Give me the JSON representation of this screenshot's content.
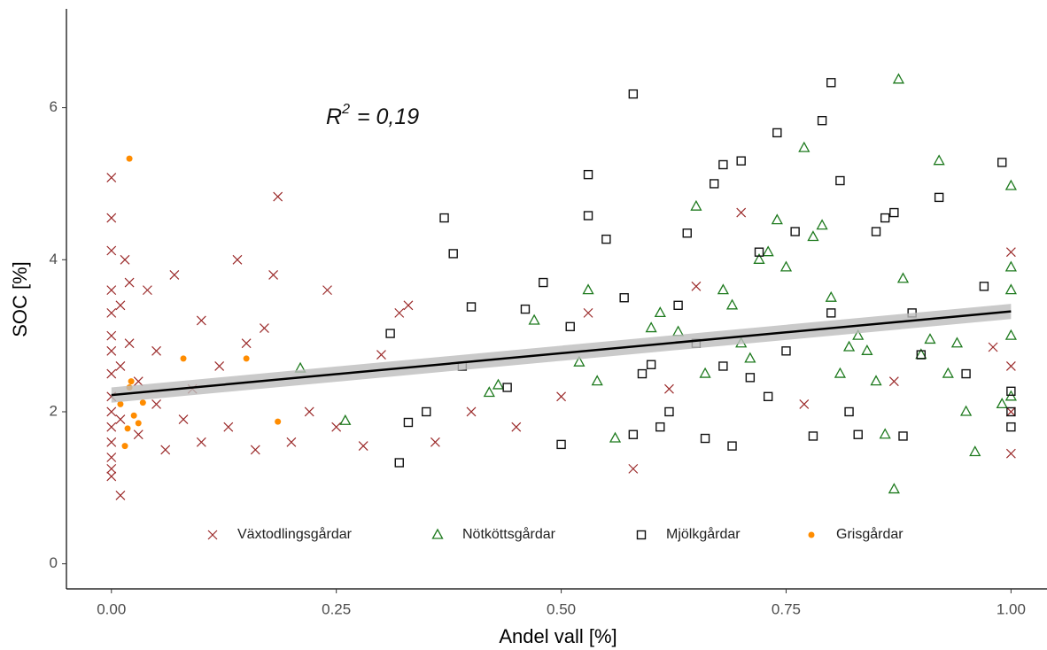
{
  "chart_data": {
    "type": "scatter",
    "xlabel": "Andel vall [%]",
    "ylabel": "SOC [%]",
    "annotation": {
      "text": "R",
      "superscript": "2",
      "rest": "= 0,19"
    },
    "xlim": [
      -0.05,
      1.04
    ],
    "ylim": [
      -0.33,
      7.3
    ],
    "xticks": [
      {
        "value": 0,
        "label": "0.00"
      },
      {
        "value": 0.25,
        "label": "0.25"
      },
      {
        "value": 0.5,
        "label": "0.50"
      },
      {
        "value": 0.75,
        "label": "0.75"
      },
      {
        "value": 1,
        "label": "1.00"
      }
    ],
    "yticks": [
      0,
      2,
      4,
      6
    ],
    "grid": false,
    "legend": "bottom",
    "series": [
      {
        "name": "Växtodlingsgårdar",
        "color": "#9b2a2a",
        "shape": "cross",
        "x": [
          0,
          0,
          0,
          0,
          0,
          0,
          0,
          0,
          0,
          0,
          0,
          0,
          0,
          0,
          0,
          0.01,
          0.01,
          0.01,
          0.01,
          0.015,
          0.02,
          0.02,
          0.03,
          0.03,
          0.04,
          0.05,
          0.05,
          0.06,
          0.07,
          0.08,
          0.09,
          0.1,
          0.1,
          0.12,
          0.13,
          0.14,
          0.15,
          0.16,
          0.17,
          0.185,
          0.18,
          0.2,
          0.22,
          0.24,
          0.25,
          0.28,
          0.3,
          0.32,
          0.33,
          0.36,
          0.4,
          0.45,
          0.5,
          0.53,
          0.58,
          0.62,
          0.65,
          0.7,
          0.77,
          0.87,
          0.98,
          1,
          1,
          1,
          1
        ],
        "values": [
          5.08,
          4.55,
          4.12,
          3.6,
          3.3,
          3.0,
          2.8,
          2.5,
          2.2,
          2.0,
          1.8,
          1.6,
          1.4,
          1.25,
          1.15,
          0.9,
          3.4,
          2.6,
          1.9,
          4.0,
          3.7,
          2.9,
          1.7,
          2.4,
          3.6,
          2.1,
          2.8,
          1.5,
          3.8,
          1.9,
          2.3,
          3.2,
          1.6,
          2.6,
          1.8,
          4.0,
          2.9,
          1.5,
          3.1,
          4.83,
          3.8,
          1.6,
          2.0,
          3.6,
          1.8,
          1.55,
          2.75,
          3.3,
          3.4,
          1.6,
          2.0,
          1.8,
          2.2,
          3.3,
          1.25,
          2.3,
          3.65,
          4.62,
          2.1,
          2.4,
          2.85,
          1.45,
          2.0,
          2.6,
          4.1
        ]
      },
      {
        "name": "Nötköttsgårdar",
        "color": "#1e7a1e",
        "shape": "triangle",
        "x": [
          0.21,
          0.26,
          0.42,
          0.43,
          0.47,
          0.52,
          0.53,
          0.54,
          0.56,
          0.6,
          0.61,
          0.63,
          0.65,
          0.66,
          0.68,
          0.69,
          0.7,
          0.71,
          0.72,
          0.73,
          0.74,
          0.75,
          0.77,
          0.78,
          0.79,
          0.8,
          0.81,
          0.82,
          0.83,
          0.84,
          0.85,
          0.86,
          0.87,
          0.875,
          0.88,
          0.9,
          0.91,
          0.92,
          0.93,
          0.94,
          0.95,
          0.96,
          0.99,
          1,
          1,
          1,
          1,
          1
        ],
        "values": [
          2.57,
          1.88,
          2.25,
          2.35,
          3.2,
          2.65,
          3.6,
          2.4,
          1.65,
          3.1,
          3.3,
          3.05,
          4.7,
          2.5,
          3.6,
          3.4,
          2.9,
          2.7,
          4.0,
          4.1,
          4.52,
          3.9,
          5.47,
          4.3,
          4.45,
          3.5,
          2.5,
          2.85,
          3.0,
          2.8,
          2.4,
          1.7,
          0.98,
          6.37,
          3.75,
          2.75,
          2.95,
          5.3,
          2.5,
          2.9,
          2.0,
          1.47,
          2.1,
          4.97,
          3.9,
          3.6,
          3.0,
          2.2
        ]
      },
      {
        "name": "Mjölkgårdar",
        "color": "#111111",
        "shape": "square",
        "x": [
          0.31,
          0.32,
          0.33,
          0.35,
          0.37,
          0.38,
          0.39,
          0.4,
          0.44,
          0.46,
          0.48,
          0.5,
          0.51,
          0.53,
          0.53,
          0.55,
          0.57,
          0.58,
          0.58,
          0.59,
          0.6,
          0.61,
          0.62,
          0.63,
          0.64,
          0.65,
          0.66,
          0.67,
          0.68,
          0.68,
          0.69,
          0.7,
          0.71,
          0.72,
          0.73,
          0.74,
          0.75,
          0.76,
          0.78,
          0.79,
          0.8,
          0.8,
          0.81,
          0.82,
          0.83,
          0.85,
          0.86,
          0.87,
          0.88,
          0.89,
          0.9,
          0.92,
          0.95,
          0.97,
          0.99,
          1,
          1,
          1
        ],
        "values": [
          3.03,
          1.33,
          1.86,
          2.0,
          4.55,
          4.08,
          2.6,
          3.38,
          2.32,
          3.35,
          3.7,
          1.57,
          3.12,
          5.12,
          4.58,
          4.27,
          3.5,
          6.18,
          1.7,
          2.5,
          2.62,
          1.8,
          2.0,
          3.4,
          4.35,
          2.9,
          1.65,
          5.0,
          5.25,
          2.6,
          1.55,
          5.3,
          2.45,
          4.1,
          2.2,
          5.67,
          2.8,
          4.37,
          1.68,
          5.83,
          6.33,
          3.3,
          5.04,
          2.0,
          1.7,
          4.37,
          4.55,
          4.62,
          1.68,
          3.3,
          2.75,
          4.82,
          2.5,
          3.65,
          5.28,
          2.27,
          2.0,
          1.8
        ]
      },
      {
        "name": "Grisgårdar",
        "color": "#ff8c00",
        "shape": "circle",
        "x": [
          0.02,
          0.01,
          0.02,
          0.022,
          0.025,
          0.035,
          0.015,
          0.018,
          0.08,
          0.15,
          0.185,
          0.03
        ],
        "values": [
          5.33,
          2.1,
          2.32,
          2.4,
          1.95,
          2.12,
          1.55,
          1.78,
          2.7,
          2.7,
          1.87,
          1.85
        ]
      }
    ],
    "trend": {
      "x": [
        0,
        1
      ],
      "y": [
        2.22,
        3.32
      ],
      "lower": [
        2.12,
        3.22
      ],
      "upper": [
        2.32,
        3.42
      ],
      "color": "#000000",
      "band_color": "#bdbdbd"
    }
  }
}
